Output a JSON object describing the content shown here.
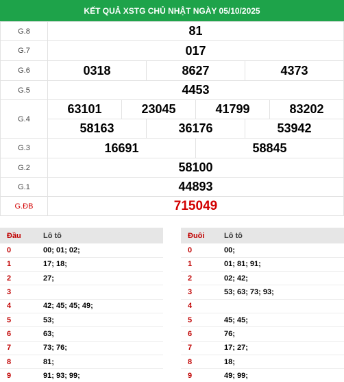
{
  "title": "KẾT QUẢ XSTG CHỦ NHẬT NGÀY 05/10/2025",
  "prizes": {
    "g8": {
      "label": "G.8",
      "values": [
        "81"
      ]
    },
    "g7": {
      "label": "G.7",
      "values": [
        "017"
      ]
    },
    "g6": {
      "label": "G.6",
      "values": [
        "0318",
        "8627",
        "4373"
      ]
    },
    "g5": {
      "label": "G.5",
      "values": [
        "4453"
      ]
    },
    "g4": {
      "label": "G.4",
      "values": [
        "63101",
        "23045",
        "41799",
        "83202",
        "58163",
        "36176",
        "53942"
      ]
    },
    "g3": {
      "label": "G.3",
      "values": [
        "16691",
        "58845"
      ]
    },
    "g2": {
      "label": "G.2",
      "values": [
        "58100"
      ]
    },
    "g1": {
      "label": "G.1",
      "values": [
        "44893"
      ]
    },
    "gdb": {
      "label": "G.ĐB",
      "values": [
        "715049"
      ]
    }
  },
  "dau_table": {
    "col_head": "Đầu",
    "col_loto": "Lô tô",
    "rows": [
      {
        "head": "0",
        "loto": "00; 01; 02;"
      },
      {
        "head": "1",
        "loto": "17; 18;"
      },
      {
        "head": "2",
        "loto": "27;"
      },
      {
        "head": "3",
        "loto": ""
      },
      {
        "head": "4",
        "loto": "42; 45; 45; 49;"
      },
      {
        "head": "5",
        "loto": "53;"
      },
      {
        "head": "6",
        "loto": "63;"
      },
      {
        "head": "7",
        "loto": "73; 76;"
      },
      {
        "head": "8",
        "loto": "81;"
      },
      {
        "head": "9",
        "loto": "91; 93; 99;"
      }
    ]
  },
  "duoi_table": {
    "col_head": "Đuôi",
    "col_loto": "Lô tô",
    "rows": [
      {
        "head": "0",
        "loto": "00;"
      },
      {
        "head": "1",
        "loto": "01; 81; 91;"
      },
      {
        "head": "2",
        "loto": "02; 42;"
      },
      {
        "head": "3",
        "loto": "53; 63; 73; 93;"
      },
      {
        "head": "4",
        "loto": ""
      },
      {
        "head": "5",
        "loto": "45; 45;"
      },
      {
        "head": "6",
        "loto": "76;"
      },
      {
        "head": "7",
        "loto": "17; 27;"
      },
      {
        "head": "8",
        "loto": "18;"
      },
      {
        "head": "9",
        "loto": "49; 99;"
      }
    ]
  },
  "colors": {
    "header_green": "#1ea34a",
    "special_red": "#d20000",
    "loto_head_red": "#c00000"
  }
}
